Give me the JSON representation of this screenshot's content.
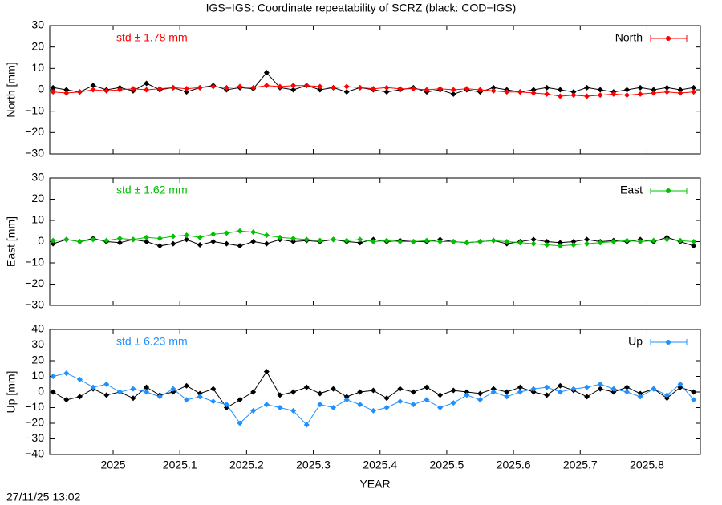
{
  "chart_data": [
    {
      "type": "line",
      "title": "IGS−IGS: Coordinate repeatability of SCRZ (black: COD−IGS)",
      "ylabel": "North [mm]",
      "annotation": "std ± 1.78 mm",
      "legend": "top-right",
      "xlim": [
        2024.905,
        2025.88
      ],
      "xticks": [
        2025,
        2025.1,
        2025.2,
        2025.3,
        2025.4,
        2025.5,
        2025.6,
        2025.7,
        2025.8
      ],
      "ylim": [
        -30,
        30
      ],
      "yticks": [
        30,
        20,
        10,
        0,
        {
          "value": -10,
          "label": "−10"
        },
        {
          "value": -20,
          "label": "−20"
        },
        {
          "value": -30,
          "label": "−30"
        }
      ],
      "x": [
        2024.91,
        2024.93,
        2024.95,
        2024.97,
        2024.99,
        2025.01,
        2025.03,
        2025.05,
        2025.07,
        2025.09,
        2025.11,
        2025.13,
        2025.15,
        2025.17,
        2025.19,
        2025.21,
        2025.23,
        2025.25,
        2025.27,
        2025.29,
        2025.31,
        2025.33,
        2025.35,
        2025.37,
        2025.39,
        2025.41,
        2025.43,
        2025.45,
        2025.47,
        2025.49,
        2025.51,
        2025.53,
        2025.55,
        2025.57,
        2025.59,
        2025.61,
        2025.63,
        2025.65,
        2025.67,
        2025.69,
        2025.71,
        2025.73,
        2025.75,
        2025.77,
        2025.79,
        2025.81,
        2025.83,
        2025.85,
        2025.87
      ],
      "series": [
        {
          "color": "#000000",
          "values": [
            1,
            0,
            -1,
            2,
            0,
            1,
            -0.5,
            3,
            0,
            1,
            -1,
            1,
            2,
            0,
            1,
            0.5,
            8,
            1,
            0,
            2,
            0,
            1,
            -1,
            1,
            0,
            -1,
            0,
            1,
            -1,
            0,
            -2,
            0,
            -1,
            1,
            0,
            -1,
            0,
            1,
            0,
            -1,
            1,
            0,
            -1,
            0,
            1,
            0,
            1,
            0,
            1
          ]
        },
        {
          "name": "North",
          "color": "#ff0000",
          "values": [
            -1,
            -1.5,
            -1,
            0,
            -0.5,
            0,
            0.5,
            0,
            0.5,
            1,
            0.5,
            1,
            1.5,
            1,
            1.5,
            1,
            2,
            1.5,
            2,
            2,
            1.5,
            1,
            1.5,
            1,
            0.5,
            1,
            0.5,
            0.5,
            0,
            0.5,
            0,
            0.5,
            0,
            -0.5,
            -1,
            -1,
            -1.5,
            -2,
            -3,
            -2.5,
            -3,
            -2.5,
            -2,
            -2.5,
            -2,
            -1.5,
            -1,
            -1.5,
            -1
          ]
        }
      ]
    },
    {
      "type": "line",
      "ylabel": "East [mm]",
      "annotation": "std ± 1.62 mm",
      "legend": "top-right",
      "xlim": [
        2024.905,
        2025.88
      ],
      "xticks": [
        2025,
        2025.1,
        2025.2,
        2025.3,
        2025.4,
        2025.5,
        2025.6,
        2025.7,
        2025.8
      ],
      "ylim": [
        -30,
        30
      ],
      "yticks": [
        30,
        20,
        10,
        0,
        {
          "value": -10,
          "label": "−10"
        },
        {
          "value": -20,
          "label": "−20"
        },
        {
          "value": -30,
          "label": "−30"
        }
      ],
      "x": [
        2024.91,
        2024.93,
        2024.95,
        2024.97,
        2024.99,
        2025.01,
        2025.03,
        2025.05,
        2025.07,
        2025.09,
        2025.11,
        2025.13,
        2025.15,
        2025.17,
        2025.19,
        2025.21,
        2025.23,
        2025.25,
        2025.27,
        2025.29,
        2025.31,
        2025.33,
        2025.35,
        2025.37,
        2025.39,
        2025.41,
        2025.43,
        2025.45,
        2025.47,
        2025.49,
        2025.51,
        2025.53,
        2025.55,
        2025.57,
        2025.59,
        2025.61,
        2025.63,
        2025.65,
        2025.67,
        2025.69,
        2025.71,
        2025.73,
        2025.75,
        2025.77,
        2025.79,
        2025.81,
        2025.83,
        2025.85,
        2025.87
      ],
      "series": [
        {
          "color": "#000000",
          "values": [
            -1,
            1,
            0,
            1.5,
            0,
            -0.5,
            1,
            0,
            -2,
            -1,
            1,
            -1.5,
            0,
            -1,
            -2,
            0,
            -1,
            1,
            0,
            0.5,
            0,
            1,
            0,
            -0.5,
            1,
            0,
            0.5,
            0,
            0,
            1,
            0,
            -0.5,
            0,
            0.5,
            -1,
            0,
            1,
            0,
            -0.5,
            0,
            1,
            0,
            0.5,
            0,
            1,
            0,
            2,
            0,
            -2
          ]
        },
        {
          "name": "East",
          "color": "#00c000",
          "values": [
            0.5,
            1,
            0,
            1,
            0.5,
            1.5,
            1,
            2,
            1.5,
            2.5,
            3,
            2,
            3.5,
            4,
            5,
            4.5,
            3,
            2,
            1.5,
            1,
            0.5,
            1,
            0.5,
            1,
            0,
            0.5,
            0,
            0,
            0.5,
            0,
            0,
            -0.5,
            0,
            0.5,
            0,
            -0.5,
            -1,
            -1.5,
            -2,
            -1.5,
            -1,
            -0.5,
            0,
            0.5,
            0,
            0.5,
            1,
            0.5,
            0
          ]
        }
      ]
    },
    {
      "type": "line",
      "ylabel": "Up [mm]",
      "annotation": "std ± 6.23 mm",
      "legend": "top-right",
      "xlabel": "YEAR",
      "xlim": [
        2024.905,
        2025.88
      ],
      "xticks": [
        2025,
        2025.1,
        2025.2,
        2025.3,
        2025.4,
        2025.5,
        2025.6,
        2025.7,
        2025.8
      ],
      "ylim": [
        -40,
        40
      ],
      "yticks": [
        40,
        30,
        20,
        10,
        0,
        {
          "value": -10,
          "label": "−10"
        },
        {
          "value": -20,
          "label": "−20"
        },
        {
          "value": -30,
          "label": "−30"
        },
        {
          "value": -40,
          "label": "−40"
        }
      ],
      "x": [
        2024.91,
        2024.93,
        2024.95,
        2024.97,
        2024.99,
        2025.01,
        2025.03,
        2025.05,
        2025.07,
        2025.09,
        2025.11,
        2025.13,
        2025.15,
        2025.17,
        2025.19,
        2025.21,
        2025.23,
        2025.25,
        2025.27,
        2025.29,
        2025.31,
        2025.33,
        2025.35,
        2025.37,
        2025.39,
        2025.41,
        2025.43,
        2025.45,
        2025.47,
        2025.49,
        2025.51,
        2025.53,
        2025.55,
        2025.57,
        2025.59,
        2025.61,
        2025.63,
        2025.65,
        2025.67,
        2025.69,
        2025.71,
        2025.73,
        2025.75,
        2025.77,
        2025.79,
        2025.81,
        2025.83,
        2025.85,
        2025.87
      ],
      "series": [
        {
          "color": "#000000",
          "values": [
            0,
            -5,
            -3,
            2,
            -2,
            0,
            -4,
            3,
            -2,
            0,
            4,
            -1,
            2,
            -10,
            -5,
            0,
            13,
            -2,
            0,
            3,
            -1,
            2,
            -3,
            0,
            1,
            -4,
            2,
            0,
            3,
            -2,
            1,
            0,
            -1,
            2,
            0,
            3,
            0,
            -2,
            4,
            1,
            -3,
            2,
            0,
            3,
            -1,
            2,
            -4,
            3,
            0
          ]
        },
        {
          "name": "Up",
          "color": "#1e90ff",
          "values": [
            10,
            12,
            8,
            3,
            5,
            0,
            2,
            0,
            -3,
            2,
            -5,
            -3,
            -6,
            -8,
            -20,
            -12,
            -8,
            -10,
            -12,
            -21,
            -8,
            -10,
            -5,
            -8,
            -12,
            -10,
            -6,
            -8,
            -5,
            -10,
            -7,
            -2,
            -5,
            0,
            -3,
            0,
            2,
            3,
            0,
            2,
            3,
            5,
            2,
            0,
            -3,
            2,
            -2,
            5,
            -5
          ]
        }
      ]
    }
  ],
  "footer": {
    "timestamp": "27/11/25 13:02"
  }
}
